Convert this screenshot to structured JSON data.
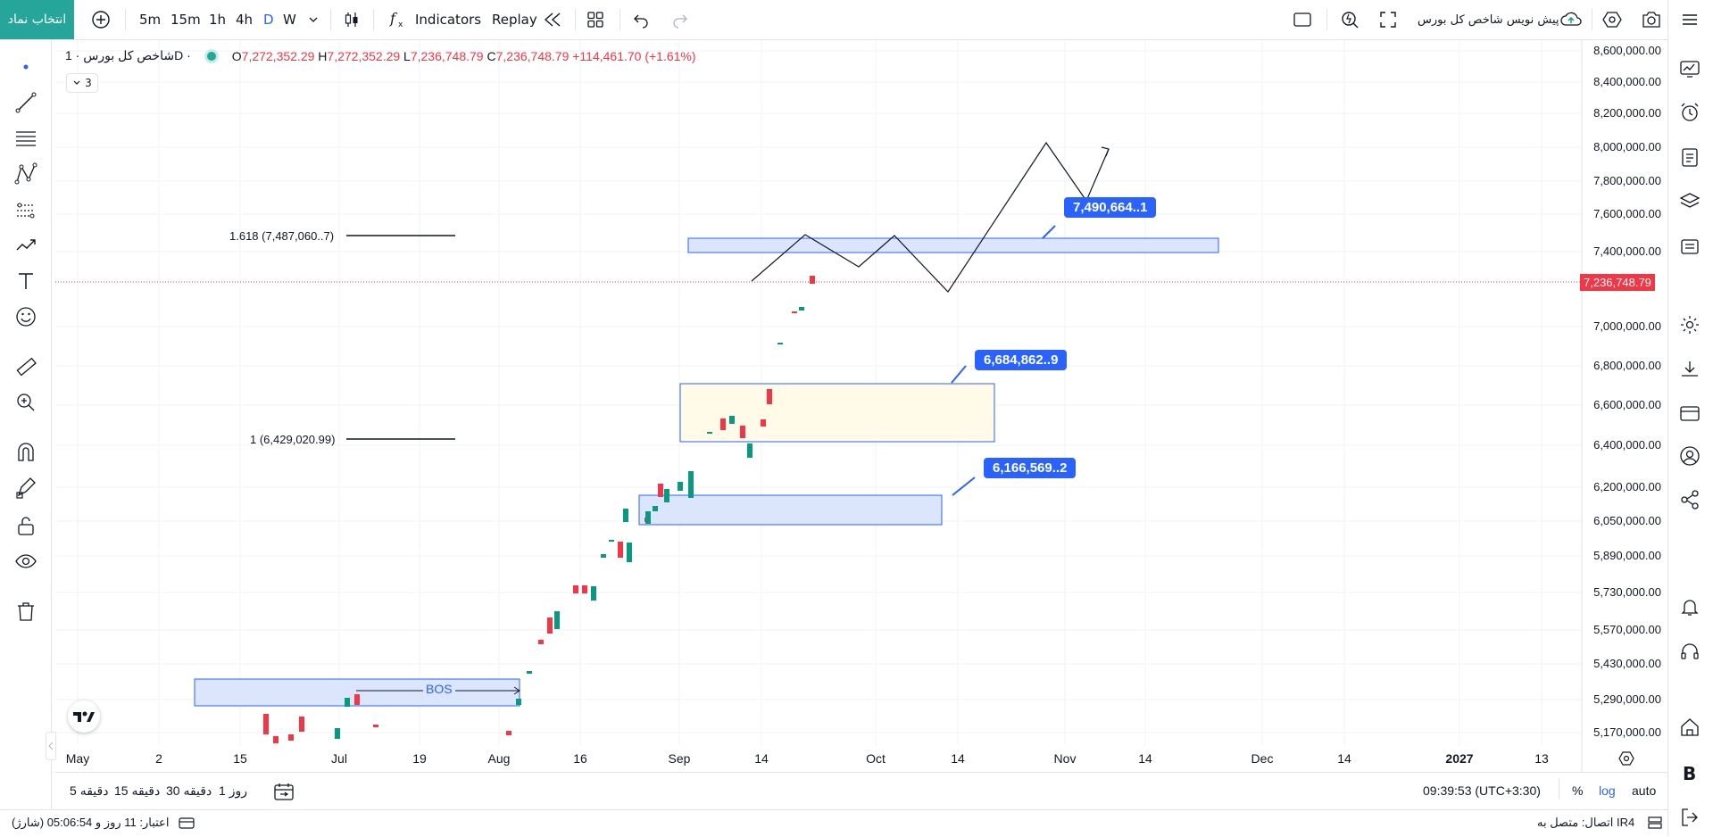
{
  "toolbar": {
    "symbol_button": "انتخاب نماد",
    "intervals": [
      "5m",
      "15m",
      "1h",
      "4h",
      "D",
      "W"
    ],
    "active_interval": "D",
    "indicators_label": "Indicators",
    "replay_label": "Replay",
    "template_name": "پیش نویس شاخص کل بورس"
  },
  "legend": {
    "symbol": "شاخص کل بورس · 1D ·",
    "open_label": "O",
    "open": "7,272,352.29",
    "high_label": "H",
    "high": "7,272,352.29",
    "low_label": "L",
    "low": "7,236,748.79",
    "close_label": "C",
    "close": "7,236,748.79",
    "change": "+114,461.70 (+1.61%)",
    "collapsed_count": "3"
  },
  "chart_data": {
    "type": "candlestick",
    "y_axis_ticks": [
      "8,600,000.00",
      "8,400,000.00",
      "8,200,000.00",
      "8,000,000.00",
      "7,800,000.00",
      "7,600,000.00",
      "7,400,000.00",
      "7,000,000.00",
      "6,800,000.00",
      "6,600,000.00",
      "6,400,000.00",
      "6,200,000.00",
      "6,050,000.00",
      "5,890,000.00",
      "5,730,000.00",
      "5,570,000.00",
      "5,430,000.00",
      "5,290,000.00",
      "5,170,000.00"
    ],
    "x_axis_ticks": [
      "May",
      "2",
      "15",
      "Jul",
      "19",
      "Aug",
      "16",
      "Sep",
      "14",
      "Oct",
      "14",
      "Nov",
      "14",
      "Dec",
      "14",
      "2027",
      "13"
    ],
    "last_price": "7,236,748.79",
    "scale": "log",
    "colors": {
      "up": "#089981",
      "down": "#f23645",
      "box_fill": "#dbe6fd",
      "box_stroke": "#2962ff",
      "yellow_fill": "#fffbe8"
    }
  },
  "annotations": {
    "fib_1618": "1.618 (7,487,060..7)",
    "fib_1": "1 (6,429,020.99)",
    "callout_top": "7,490,664..1",
    "callout_mid": "6,684,862..9",
    "callout_low": "6,166,569..2",
    "bos": "BOS"
  },
  "bottombar": {
    "timeframes": [
      "5 دقیقه",
      "15 دقیقه",
      "30 دقیقه",
      "1 روز"
    ],
    "clock": "09:39:53 (UTC+3:30)",
    "percent": "%",
    "log": "log",
    "auto": "auto"
  },
  "status": {
    "credit": "اعتبار: 11 روز و 05:06:54 (شارژ)",
    "connection": "اتصال: متصل به IR4"
  }
}
